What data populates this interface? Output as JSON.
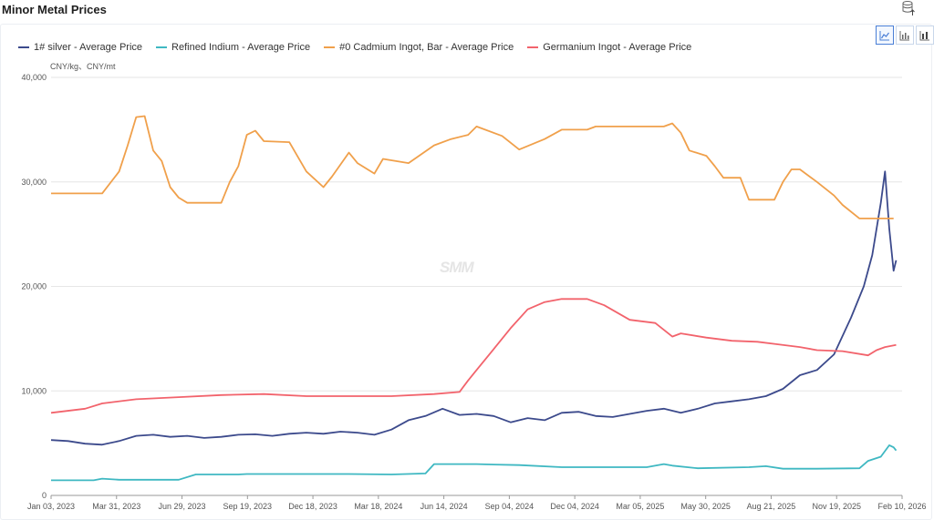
{
  "header": {
    "title": "Minor Metal Prices",
    "export_icon": "database-export-icon"
  },
  "toolbar": {
    "chart_types": [
      "line-chart-icon",
      "bar-chart-icon",
      "stacked-bar-chart-icon"
    ],
    "active": "line-chart-icon"
  },
  "watermark": "SMM",
  "colors": {
    "silver": "#3c4a8c",
    "indium": "#3fb8c2",
    "cadmium": "#f0a04b",
    "germanium": "#f2636c",
    "grid": "#e6e6e6",
    "axis": "#999999"
  },
  "chart_data": {
    "type": "line",
    "title": "Minor Metal Prices",
    "unit_label": "CNY/kg、CNY/mt",
    "ylim": [
      0,
      40000
    ],
    "yticks": [
      0,
      10000,
      20000,
      30000,
      40000
    ],
    "ytick_labels": [
      "0",
      "10,000",
      "20,000",
      "30,000",
      "40,000"
    ],
    "xlim": [
      "2023-01-03",
      "2026-02-10"
    ],
    "xtick_labels": [
      "Jan 03, 2023",
      "Mar 31, 2023",
      "Jun 29, 2023",
      "Sep 19, 2023",
      "Dec 18, 2023",
      "Mar 18, 2024",
      "Jun 14, 2024",
      "Sep 04, 2024",
      "Dec 04, 2024",
      "Mar 05, 2025",
      "May 30, 2025",
      "Aug 21, 2025",
      "Nov 19, 2025",
      "Feb 10, 2026"
    ],
    "legend_position": "top-left",
    "series": [
      {
        "key": "silver",
        "name": "1# silver - Average Price",
        "points": [
          [
            0,
            5300
          ],
          [
            0.02,
            5200
          ],
          [
            0.04,
            4950
          ],
          [
            0.06,
            4850
          ],
          [
            0.08,
            5200
          ],
          [
            0.1,
            5700
          ],
          [
            0.12,
            5800
          ],
          [
            0.14,
            5600
          ],
          [
            0.16,
            5700
          ],
          [
            0.18,
            5500
          ],
          [
            0.2,
            5600
          ],
          [
            0.22,
            5800
          ],
          [
            0.24,
            5850
          ],
          [
            0.26,
            5700
          ],
          [
            0.28,
            5900
          ],
          [
            0.3,
            6000
          ],
          [
            0.32,
            5900
          ],
          [
            0.34,
            6100
          ],
          [
            0.36,
            6000
          ],
          [
            0.38,
            5800
          ],
          [
            0.4,
            6300
          ],
          [
            0.42,
            7200
          ],
          [
            0.44,
            7600
          ],
          [
            0.46,
            8300
          ],
          [
            0.48,
            7700
          ],
          [
            0.5,
            7800
          ],
          [
            0.52,
            7600
          ],
          [
            0.54,
            7000
          ],
          [
            0.56,
            7400
          ],
          [
            0.58,
            7200
          ],
          [
            0.6,
            7900
          ],
          [
            0.62,
            8000
          ],
          [
            0.64,
            7600
          ],
          [
            0.66,
            7500
          ],
          [
            0.68,
            7800
          ],
          [
            0.7,
            8100
          ],
          [
            0.72,
            8300
          ],
          [
            0.74,
            7900
          ],
          [
            0.76,
            8300
          ],
          [
            0.78,
            8800
          ],
          [
            0.8,
            9000
          ],
          [
            0.82,
            9200
          ],
          [
            0.84,
            9500
          ],
          [
            0.86,
            10200
          ],
          [
            0.88,
            11500
          ],
          [
            0.9,
            12000
          ],
          [
            0.92,
            13500
          ],
          [
            0.94,
            17000
          ],
          [
            0.955,
            20000
          ],
          [
            0.965,
            23000
          ],
          [
            0.975,
            28000
          ],
          [
            0.98,
            31000
          ],
          [
            0.985,
            25500
          ],
          [
            0.99,
            21500
          ],
          [
            0.993,
            22500
          ]
        ]
      },
      {
        "key": "indium",
        "name": "Refined Indium - Average Price",
        "points": [
          [
            0,
            1450
          ],
          [
            0.05,
            1450
          ],
          [
            0.06,
            1600
          ],
          [
            0.08,
            1500
          ],
          [
            0.15,
            1500
          ],
          [
            0.17,
            2000
          ],
          [
            0.22,
            2000
          ],
          [
            0.23,
            2050
          ],
          [
            0.3,
            2050
          ],
          [
            0.35,
            2050
          ],
          [
            0.4,
            2000
          ],
          [
            0.44,
            2100
          ],
          [
            0.45,
            3000
          ],
          [
            0.5,
            3000
          ],
          [
            0.52,
            2950
          ],
          [
            0.55,
            2900
          ],
          [
            0.6,
            2700
          ],
          [
            0.65,
            2700
          ],
          [
            0.7,
            2700
          ],
          [
            0.72,
            3000
          ],
          [
            0.73,
            2850
          ],
          [
            0.76,
            2600
          ],
          [
            0.82,
            2700
          ],
          [
            0.84,
            2800
          ],
          [
            0.86,
            2550
          ],
          [
            0.9,
            2550
          ],
          [
            0.95,
            2600
          ],
          [
            0.96,
            3300
          ],
          [
            0.975,
            3700
          ],
          [
            0.985,
            4800
          ],
          [
            0.99,
            4600
          ],
          [
            0.993,
            4300
          ]
        ]
      },
      {
        "key": "cadmium",
        "name": "#0 Cadmium Ingot, Bar - Average Price",
        "points": [
          [
            0,
            28900
          ],
          [
            0.06,
            28900
          ],
          [
            0.08,
            31000
          ],
          [
            0.09,
            33500
          ],
          [
            0.1,
            36200
          ],
          [
            0.11,
            36300
          ],
          [
            0.12,
            33000
          ],
          [
            0.13,
            32000
          ],
          [
            0.14,
            29500
          ],
          [
            0.15,
            28500
          ],
          [
            0.16,
            28000
          ],
          [
            0.2,
            28000
          ],
          [
            0.21,
            30000
          ],
          [
            0.22,
            31500
          ],
          [
            0.23,
            34500
          ],
          [
            0.24,
            34900
          ],
          [
            0.25,
            33900
          ],
          [
            0.28,
            33800
          ],
          [
            0.3,
            31000
          ],
          [
            0.32,
            29500
          ],
          [
            0.33,
            30500
          ],
          [
            0.35,
            32800
          ],
          [
            0.36,
            31800
          ],
          [
            0.38,
            30800
          ],
          [
            0.39,
            32200
          ],
          [
            0.42,
            31800
          ],
          [
            0.45,
            33500
          ],
          [
            0.47,
            34100
          ],
          [
            0.49,
            34500
          ],
          [
            0.5,
            35300
          ],
          [
            0.53,
            34400
          ],
          [
            0.55,
            33100
          ],
          [
            0.58,
            34100
          ],
          [
            0.6,
            35000
          ],
          [
            0.63,
            35000
          ],
          [
            0.64,
            35300
          ],
          [
            0.7,
            35300
          ],
          [
            0.72,
            35300
          ],
          [
            0.73,
            35600
          ],
          [
            0.74,
            34700
          ],
          [
            0.75,
            33000
          ],
          [
            0.77,
            32500
          ],
          [
            0.78,
            31500
          ],
          [
            0.79,
            30400
          ],
          [
            0.81,
            30400
          ],
          [
            0.82,
            28300
          ],
          [
            0.85,
            28300
          ],
          [
            0.86,
            30000
          ],
          [
            0.87,
            31200
          ],
          [
            0.88,
            31200
          ],
          [
            0.9,
            30000
          ],
          [
            0.92,
            28700
          ],
          [
            0.93,
            27800
          ],
          [
            0.95,
            26500
          ],
          [
            0.99,
            26500
          ]
        ]
      },
      {
        "key": "germanium",
        "name": "Germanium Ingot - Average Price",
        "points": [
          [
            0,
            7900
          ],
          [
            0.04,
            8300
          ],
          [
            0.06,
            8800
          ],
          [
            0.1,
            9200
          ],
          [
            0.15,
            9400
          ],
          [
            0.2,
            9600
          ],
          [
            0.25,
            9700
          ],
          [
            0.3,
            9500
          ],
          [
            0.35,
            9500
          ],
          [
            0.4,
            9500
          ],
          [
            0.45,
            9700
          ],
          [
            0.48,
            9900
          ],
          [
            0.49,
            11000
          ],
          [
            0.5,
            12000
          ],
          [
            0.52,
            14000
          ],
          [
            0.54,
            16000
          ],
          [
            0.56,
            17800
          ],
          [
            0.58,
            18500
          ],
          [
            0.6,
            18800
          ],
          [
            0.63,
            18800
          ],
          [
            0.65,
            18200
          ],
          [
            0.68,
            16800
          ],
          [
            0.71,
            16500
          ],
          [
            0.73,
            15200
          ],
          [
            0.74,
            15500
          ],
          [
            0.77,
            15100
          ],
          [
            0.8,
            14800
          ],
          [
            0.83,
            14700
          ],
          [
            0.85,
            14500
          ],
          [
            0.88,
            14200
          ],
          [
            0.9,
            13900
          ],
          [
            0.93,
            13800
          ],
          [
            0.96,
            13400
          ],
          [
            0.97,
            13900
          ],
          [
            0.98,
            14200
          ],
          [
            0.993,
            14400
          ]
        ]
      }
    ]
  }
}
